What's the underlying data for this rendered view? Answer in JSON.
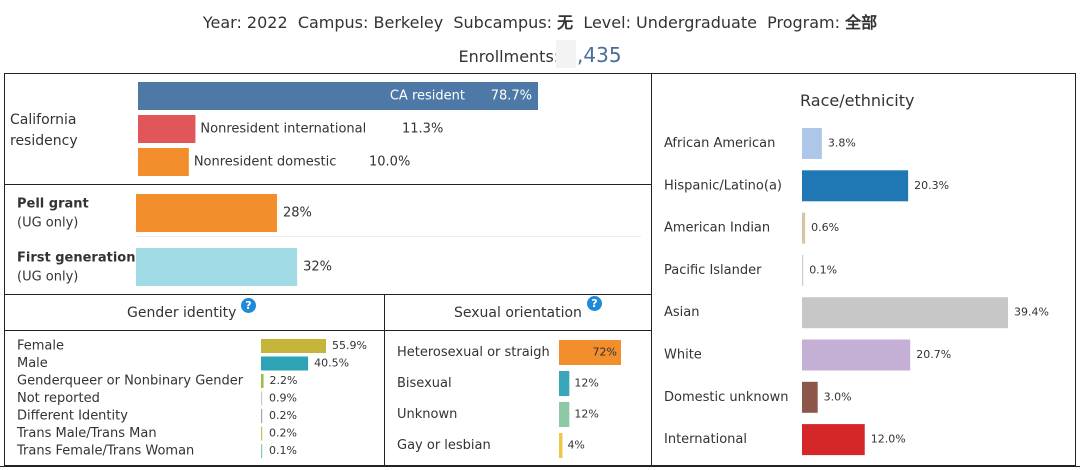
{
  "header": {
    "year_label": "Year:",
    "year": "2022",
    "campus_label": "Campus:",
    "campus": "Berkeley",
    "subcampus_label": "Subcampus:",
    "subcampus": "无",
    "level_label": "Level:",
    "level": "Undergraduate",
    "program_label": "Program:",
    "program": "全部",
    "enroll_label": "Enrollments:",
    "enroll_value": "9,435"
  },
  "chart_data": [
    {
      "type": "bar",
      "title": "California residency",
      "categories": [
        "CA resident",
        "Nonresident international",
        "Nonresident domestic"
      ],
      "values": [
        78.7,
        11.3,
        10.0
      ],
      "value_labels": [
        "78.7%",
        "11.3%",
        "10.0%"
      ],
      "colors": [
        "#4e79a7",
        "#e15759",
        "#f28e2b"
      ],
      "xlim": [
        0,
        100
      ]
    },
    {
      "type": "bar",
      "categories": [
        "Pell grant (UG only)",
        "First generation (UG only)"
      ],
      "label_lines": [
        [
          "Pell grant",
          "(UG only)"
        ],
        [
          "First generation",
          "(UG only)"
        ]
      ],
      "values": [
        28,
        32
      ],
      "value_labels": [
        "28%",
        "32%"
      ],
      "colors": [
        "#f28e2b",
        "#a0dbe6"
      ],
      "xlim": [
        0,
        100
      ]
    },
    {
      "type": "bar",
      "title": "Gender identity",
      "categories": [
        "Female",
        "Male",
        "Genderqueer or Nonbinary Gender",
        "Not reported",
        "Different Identity",
        "Trans Male/Trans Man",
        "Trans Female/Trans Woman"
      ],
      "values": [
        55.9,
        40.5,
        2.2,
        0.9,
        0.2,
        0.2,
        0.1
      ],
      "value_labels": [
        "55.9%",
        "40.5%",
        "2.2%",
        "0.9%",
        "0.2%",
        "0.2%",
        "0.1%"
      ],
      "colors": [
        "#c5b53a",
        "#2fa3b6",
        "#97bf4b",
        "#c9c9c9",
        "#a6a6a6",
        "#b7c45a",
        "#88c9a8"
      ],
      "xlim": [
        0,
        100
      ]
    },
    {
      "type": "bar",
      "title": "Sexual orientation",
      "categories": [
        "Heterosexual or straight",
        "Bisexual",
        "Unknown",
        "Gay or lesbian"
      ],
      "display_labels": [
        "Heterosexual or straigh",
        "Bisexual",
        "Unknown",
        "Gay or lesbian"
      ],
      "values": [
        72,
        12,
        12,
        4
      ],
      "value_labels": [
        "72%",
        "12%",
        "12%",
        "4%"
      ],
      "colors": [
        "#f28e2b",
        "#3aa6b9",
        "#8dc9a5",
        "#edc948"
      ],
      "xlim": [
        0,
        100
      ]
    },
    {
      "type": "bar",
      "title": "Race/ethnicity",
      "categories": [
        "African American",
        "Hispanic/Latino(a)",
        "American Indian",
        "Pacific Islander",
        "Asian",
        "White",
        "Domestic unknown",
        "International"
      ],
      "values": [
        3.8,
        20.3,
        0.6,
        0.1,
        39.4,
        20.7,
        3.0,
        12.0
      ],
      "value_labels": [
        "3.8%",
        "20.3%",
        "0.6%",
        "0.1%",
        "39.4%",
        "20.7%",
        "3.0%",
        "12.0%"
      ],
      "colors": [
        "#aec7e8",
        "#1f77b4",
        "#d8c3a5",
        "#cccccc",
        "#c7c7c7",
        "#c5b0d5",
        "#8c564b",
        "#d62728"
      ],
      "xlim": [
        0,
        100
      ]
    }
  ]
}
